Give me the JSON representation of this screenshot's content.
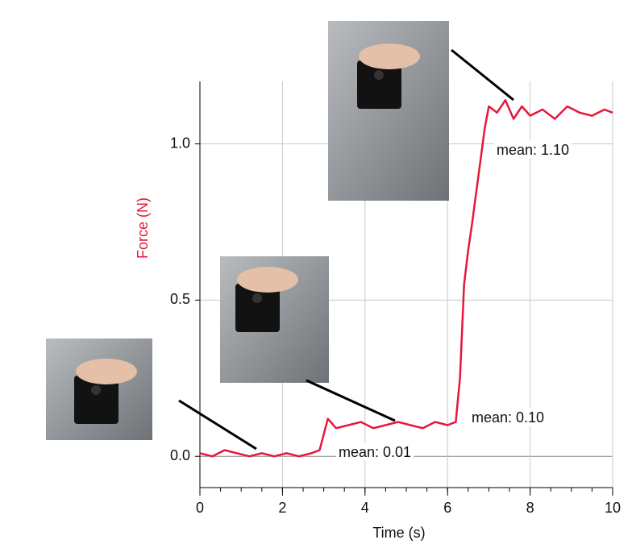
{
  "chart_data": {
    "type": "line",
    "xlabel": "Time (s)",
    "ylabel": "Force (N)",
    "x": [
      0,
      0.3,
      0.6,
      0.9,
      1.2,
      1.5,
      1.8,
      2.1,
      2.4,
      2.7,
      2.9,
      3.0,
      3.1,
      3.3,
      3.6,
      3.9,
      4.2,
      4.5,
      4.8,
      5.1,
      5.4,
      5.7,
      6.0,
      6.2,
      6.3,
      6.4,
      6.5,
      6.6,
      6.7,
      6.8,
      6.9,
      7.0,
      7.2,
      7.4,
      7.6,
      7.8,
      8.0,
      8.3,
      8.6,
      8.9,
      9.2,
      9.5,
      9.8,
      10
    ],
    "values": [
      0.01,
      0.0,
      0.02,
      0.01,
      0.0,
      0.01,
      0.0,
      0.01,
      0.0,
      0.01,
      0.02,
      0.07,
      0.12,
      0.09,
      0.1,
      0.11,
      0.09,
      0.1,
      0.11,
      0.1,
      0.09,
      0.11,
      0.1,
      0.11,
      0.25,
      0.55,
      0.66,
      0.75,
      0.85,
      0.95,
      1.05,
      1.12,
      1.1,
      1.14,
      1.08,
      1.12,
      1.09,
      1.11,
      1.08,
      1.12,
      1.1,
      1.09,
      1.11,
      1.1
    ],
    "color": "#e8173a",
    "xlim": [
      0,
      10
    ],
    "ylim": [
      -0.1,
      1.2
    ],
    "xticks": [
      0,
      2,
      4,
      6,
      8,
      10
    ],
    "yticks": [
      {
        "value": 0,
        "label": "0.0"
      },
      0.5,
      {
        "value": 1,
        "label": "1.0"
      }
    ],
    "grid": true,
    "annotations": [
      "mean: 0.01",
      "mean: 0.10",
      "mean: 1.10"
    ]
  }
}
